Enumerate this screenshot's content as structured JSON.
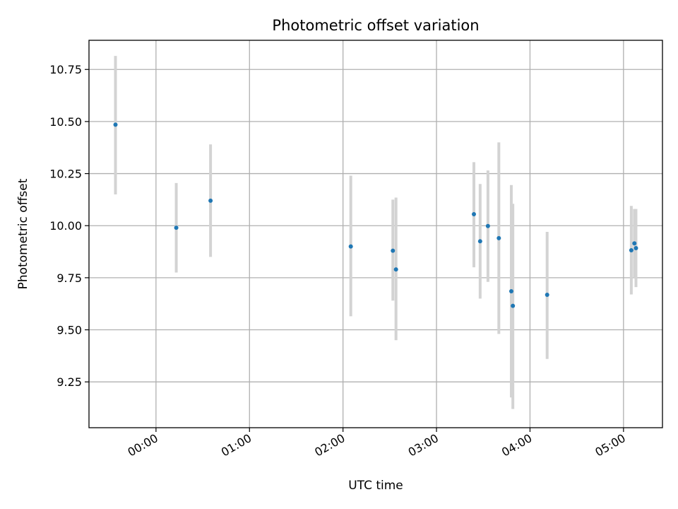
{
  "chart_data": {
    "type": "scatter",
    "title": "Photometric offset variation",
    "xlabel": "UTC time",
    "ylabel": "Photometric offset",
    "x_axis": {
      "kind": "time",
      "xlim": [
        "-00:43",
        "05:25"
      ],
      "ticks": [
        "00:00",
        "01:00",
        "02:00",
        "03:00",
        "04:00",
        "05:00"
      ]
    },
    "y_axis": {
      "ylim": [
        9.03,
        10.89
      ],
      "ticks": [
        9.25,
        9.5,
        9.75,
        10.0,
        10.25,
        10.5,
        10.75
      ],
      "tick_labels": [
        "9.25",
        "9.50",
        "9.75",
        "10.00",
        "10.25",
        "10.50",
        "10.75"
      ]
    },
    "grid": true,
    "series": [
      {
        "marker_color": "#1f77b4",
        "error_color": "#d3d3d3",
        "points": [
          {
            "t": "-00:26",
            "y": 10.485,
            "ylo": 10.15,
            "yhi": 10.815
          },
          {
            "t": "00:13",
            "y": 9.99,
            "ylo": 9.775,
            "yhi": 10.205
          },
          {
            "t": "00:35",
            "y": 10.12,
            "ylo": 9.85,
            "yhi": 10.39
          },
          {
            "t": "02:05",
            "y": 9.9,
            "ylo": 9.565,
            "yhi": 10.24
          },
          {
            "t": "02:32",
            "y": 9.88,
            "ylo": 9.64,
            "yhi": 10.125
          },
          {
            "t": "02:34",
            "y": 9.79,
            "ylo": 9.45,
            "yhi": 10.135
          },
          {
            "t": "03:24",
            "y": 10.055,
            "ylo": 9.8,
            "yhi": 10.305
          },
          {
            "t": "03:28",
            "y": 9.925,
            "ylo": 9.65,
            "yhi": 10.2
          },
          {
            "t": "03:33",
            "y": 9.998,
            "ylo": 9.73,
            "yhi": 10.265
          },
          {
            "t": "03:40",
            "y": 9.94,
            "ylo": 9.48,
            "yhi": 10.4
          },
          {
            "t": "03:48",
            "y": 9.685,
            "ylo": 9.175,
            "yhi": 10.195
          },
          {
            "t": "03:49",
            "y": 9.615,
            "ylo": 9.12,
            "yhi": 10.105
          },
          {
            "t": "04:11",
            "y": 9.668,
            "ylo": 9.36,
            "yhi": 9.97
          },
          {
            "t": "05:05",
            "y": 9.882,
            "ylo": 9.67,
            "yhi": 10.095
          },
          {
            "t": "05:07",
            "y": 9.915,
            "ylo": 9.75,
            "yhi": 10.08
          },
          {
            "t": "05:08",
            "y": 9.892,
            "ylo": 9.705,
            "yhi": 10.08
          }
        ]
      }
    ]
  }
}
